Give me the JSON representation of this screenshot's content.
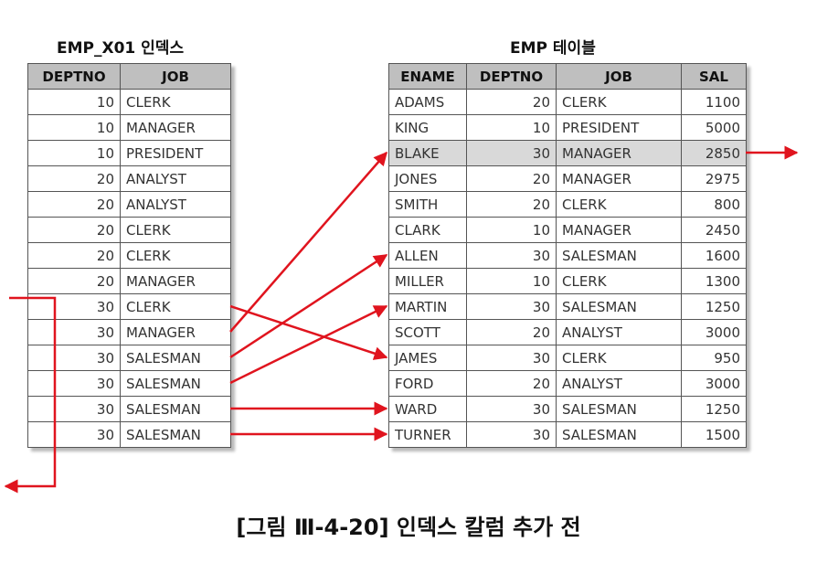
{
  "index_table": {
    "title": "EMP_X01 인덱스",
    "headers": [
      "DEPTNO",
      "JOB"
    ],
    "rows": [
      [
        "10",
        "CLERK"
      ],
      [
        "10",
        "MANAGER"
      ],
      [
        "10",
        "PRESIDENT"
      ],
      [
        "20",
        "ANALYST"
      ],
      [
        "20",
        "ANALYST"
      ],
      [
        "20",
        "CLERK"
      ],
      [
        "20",
        "CLERK"
      ],
      [
        "20",
        "MANAGER"
      ],
      [
        "30",
        "CLERK"
      ],
      [
        "30",
        "MANAGER"
      ],
      [
        "30",
        "SALESMAN"
      ],
      [
        "30",
        "SALESMAN"
      ],
      [
        "30",
        "SALESMAN"
      ],
      [
        "30",
        "SALESMAN"
      ]
    ]
  },
  "emp_table": {
    "title": "EMP 테이블",
    "headers": [
      "ENAME",
      "DEPTNO",
      "JOB",
      "SAL"
    ],
    "highlighted_row": 2,
    "rows": [
      [
        "ADAMS",
        "20",
        "CLERK",
        "1100"
      ],
      [
        "KING",
        "10",
        "PRESIDENT",
        "5000"
      ],
      [
        "BLAKE",
        "30",
        "MANAGER",
        "2850"
      ],
      [
        "JONES",
        "20",
        "MANAGER",
        "2975"
      ],
      [
        "SMITH",
        "20",
        "CLERK",
        "800"
      ],
      [
        "CLARK",
        "10",
        "MANAGER",
        "2450"
      ],
      [
        "ALLEN",
        "30",
        "SALESMAN",
        "1600"
      ],
      [
        "MILLER",
        "10",
        "CLERK",
        "1300"
      ],
      [
        "MARTIN",
        "30",
        "SALESMAN",
        "1250"
      ],
      [
        "SCOTT",
        "20",
        "ANALYST",
        "3000"
      ],
      [
        "JAMES",
        "30",
        "CLERK",
        "950"
      ],
      [
        "FORD",
        "20",
        "ANALYST",
        "3000"
      ],
      [
        "WARD",
        "30",
        "SALESMAN",
        "1250"
      ],
      [
        "TURNER",
        "30",
        "SALESMAN",
        "1500"
      ]
    ]
  },
  "arrows": {
    "color": "#e0141e",
    "links": [
      {
        "from": 8,
        "to": 10
      },
      {
        "from": 9,
        "to": 2
      },
      {
        "from": 10,
        "to": 6
      },
      {
        "from": 11,
        "to": 8
      },
      {
        "from": 12,
        "to": 12
      },
      {
        "from": 13,
        "to": 13
      }
    ]
  },
  "caption": "[그림 Ⅲ-4-20] 인덱스 칼럼 추가 전"
}
